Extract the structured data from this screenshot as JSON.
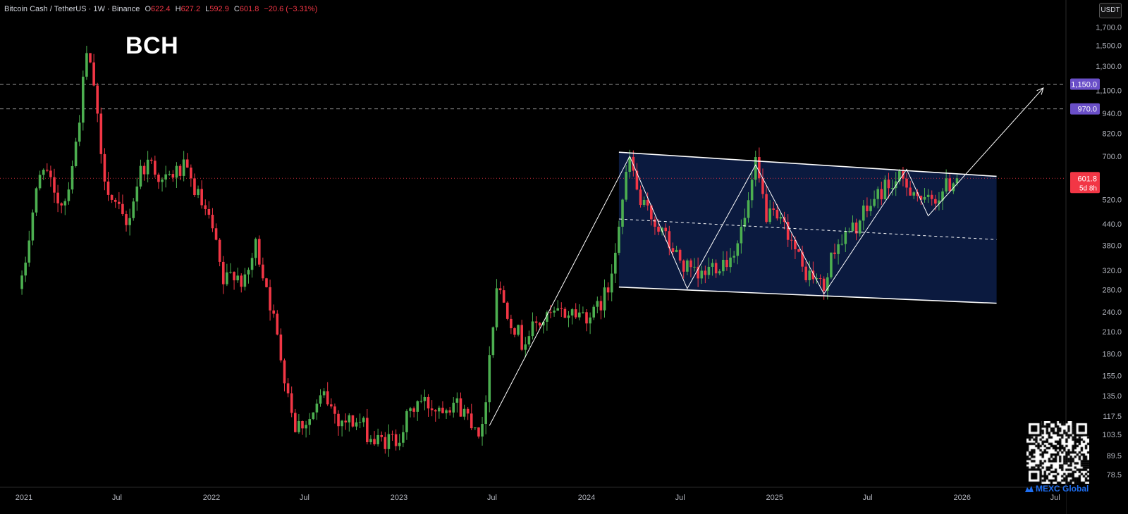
{
  "header": {
    "symbol": "Bitcoin Cash / TetherUS · 1W · Binance",
    "o_label": "O",
    "o": "622.4",
    "h_label": "H",
    "h": "627.2",
    "l_label": "L",
    "l": "592.9",
    "c_label": "C",
    "c": "601.8",
    "change": "−20.6 (−3.31%)"
  },
  "title": "BCH",
  "currency_button": "USDT",
  "brand": "MEXC Global",
  "colors": {
    "up": "#4caf50",
    "down": "#f23645",
    "background": "#000000",
    "channel_fill": "#0d1f4a",
    "tag": "#6a4fc8"
  },
  "chart_data": {
    "type": "candlestick",
    "title": "BCH",
    "y_scale": "log",
    "ylim": [
      72,
      2050
    ],
    "y_ticks": [
      "1,700.0",
      "1,500.0",
      "1,300.0",
      "1,100.0",
      "940.0",
      "820.0",
      "700.0",
      "520.0",
      "440.0",
      "380.0",
      "320.0",
      "280.0",
      "240.0",
      "210.0",
      "180.0",
      "155.0",
      "135.0",
      "117.5",
      "103.5",
      "89.5",
      "78.5"
    ],
    "y_tick_values": [
      1700,
      1500,
      1300,
      1100,
      940,
      820,
      700,
      520,
      440,
      380,
      320,
      280,
      240,
      210,
      180,
      155,
      135,
      117.5,
      103.5,
      89.5,
      78.5
    ],
    "x_ticks": [
      "2021",
      "Jul",
      "2022",
      "Jul",
      "2023",
      "Jul",
      "2024",
      "Jul",
      "2025",
      "Jul",
      "2026",
      "Jul"
    ],
    "x_tick_dates": [
      "2021-01-01",
      "2021-07-01",
      "2022-01-01",
      "2022-07-01",
      "2023-01-01",
      "2023-07-01",
      "2024-01-01",
      "2024-07-01",
      "2025-01-01",
      "2025-07-01",
      "2026-01-01",
      "2026-07-01"
    ],
    "interval": "1W",
    "close_path": [
      [
        "2020-12-28",
        290
      ],
      [
        "2021-01-18",
        480
      ],
      [
        "2021-02-08",
        680
      ],
      [
        "2021-03-01",
        520
      ],
      [
        "2021-03-22",
        520
      ],
      [
        "2021-04-12",
        760
      ],
      [
        "2021-05-03",
        1400
      ],
      [
        "2021-05-17",
        1150
      ],
      [
        "2021-05-31",
        680
      ],
      [
        "2021-06-21",
        520
      ],
      [
        "2021-07-19",
        430
      ],
      [
        "2021-08-16",
        640
      ],
      [
        "2021-09-06",
        680
      ],
      [
        "2021-09-27",
        580
      ],
      [
        "2021-10-18",
        620
      ],
      [
        "2021-11-08",
        640
      ],
      [
        "2021-11-29",
        560
      ],
      [
        "2022-01-03",
        420
      ],
      [
        "2022-01-24",
        290
      ],
      [
        "2022-02-14",
        320
      ],
      [
        "2022-03-07",
        290
      ],
      [
        "2022-03-28",
        380
      ],
      [
        "2022-04-18",
        290
      ],
      [
        "2022-05-09",
        200
      ],
      [
        "2022-06-13",
        110
      ],
      [
        "2022-07-11",
        115
      ],
      [
        "2022-08-08",
        135
      ],
      [
        "2022-09-05",
        115
      ],
      [
        "2022-10-17",
        112
      ],
      [
        "2022-11-14",
        98
      ],
      [
        "2022-12-26",
        100
      ],
      [
        "2023-02-06",
        130
      ],
      [
        "2023-03-13",
        125
      ],
      [
        "2023-04-17",
        130
      ],
      [
        "2023-05-22",
        115
      ],
      [
        "2023-06-12",
        105
      ],
      [
        "2023-06-26",
        180
      ],
      [
        "2023-07-10",
        290
      ],
      [
        "2023-08-07",
        230
      ],
      [
        "2023-08-28",
        195
      ],
      [
        "2023-09-25",
        220
      ],
      [
        "2023-10-30",
        235
      ],
      [
        "2023-12-04",
        240
      ],
      [
        "2024-01-15",
        235
      ],
      [
        "2024-02-12",
        280
      ],
      [
        "2024-03-04",
        450
      ],
      [
        "2024-03-25",
        690
      ],
      [
        "2024-04-15",
        500
      ],
      [
        "2024-05-13",
        450
      ],
      [
        "2024-06-10",
        380
      ],
      [
        "2024-07-08",
        330
      ],
      [
        "2024-08-05",
        300
      ],
      [
        "2024-09-02",
        330
      ],
      [
        "2024-10-07",
        350
      ],
      [
        "2024-11-04",
        450
      ],
      [
        "2024-11-25",
        650
      ],
      [
        "2024-12-16",
        470
      ],
      [
        "2025-01-27",
        420
      ],
      [
        "2025-02-24",
        320
      ],
      [
        "2025-03-24",
        300
      ],
      [
        "2025-04-07",
        280
      ],
      [
        "2025-04-28",
        380
      ],
      [
        "2025-05-26",
        410
      ],
      [
        "2025-06-16",
        450
      ],
      [
        "2025-07-14",
        520
      ],
      [
        "2025-08-04",
        570
      ],
      [
        "2025-09-01",
        590
      ],
      [
        "2025-09-29",
        560
      ],
      [
        "2025-10-20",
        500
      ],
      [
        "2025-11-17",
        540
      ],
      [
        "2025-12-08",
        580
      ],
      [
        "2025-12-22",
        601.8
      ]
    ],
    "horizontal_levels": [
      {
        "price": 1150,
        "label": "1,150.0"
      },
      {
        "price": 970,
        "label": "970.0"
      }
    ],
    "last_price": {
      "price": 601.8,
      "label": "601.8",
      "countdown": "5d 8h"
    },
    "channel": {
      "upper": [
        [
          "2024-03-04",
          720
        ],
        [
          "2026-03-09",
          610
        ]
      ],
      "lower": [
        [
          "2024-03-04",
          285
        ],
        [
          "2026-03-09",
          255
        ]
      ],
      "mid": [
        [
          "2024-03-04",
          455
        ],
        [
          "2026-03-09",
          395
        ]
      ]
    },
    "trend_path": [
      [
        "2023-06-26",
        110
      ],
      [
        "2024-03-25",
        700
      ],
      [
        "2024-07-15",
        282
      ],
      [
        "2024-11-25",
        660
      ],
      [
        "2025-04-07",
        272
      ],
      [
        "2025-09-15",
        640
      ],
      [
        "2025-10-27",
        465
      ],
      [
        "2026-06-08",
        1120
      ]
    ],
    "trend_arrow_head": true
  }
}
